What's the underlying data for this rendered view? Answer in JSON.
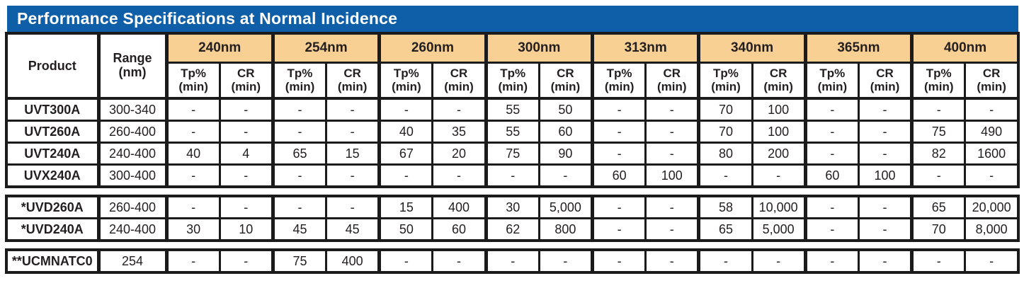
{
  "title": "Performance Specifications at Normal Incidence",
  "colors": {
    "title_bar_blue": "#0e5ea8",
    "title_text": "#ffffff",
    "wavelength_band_tan": "#f8d093",
    "grid_black": "#1b1b1b"
  },
  "table": {
    "product_header": "Product",
    "range_header": {
      "line1": "Range",
      "line2": "(nm)"
    },
    "sub_headers": {
      "tp": "Tp%",
      "cr": "CR",
      "min": "(min)"
    },
    "wavelengths": [
      "240nm",
      "254nm",
      "260nm",
      "300nm",
      "313nm",
      "340nm",
      "365nm",
      "400nm"
    ],
    "groups": [
      {
        "rows": [
          {
            "product": "UVT300A",
            "range": "300-340",
            "values": [
              "-",
              "-",
              "-",
              "-",
              "-",
              "-",
              "55",
              "50",
              "-",
              "-",
              "70",
              "100",
              "-",
              "-",
              "-",
              "-"
            ]
          },
          {
            "product": "UVT260A",
            "range": "260-400",
            "values": [
              "-",
              "-",
              "-",
              "-",
              "40",
              "35",
              "55",
              "60",
              "-",
              "-",
              "70",
              "100",
              "-",
              "-",
              "75",
              "490"
            ]
          },
          {
            "product": "UVT240A",
            "range": "240-400",
            "values": [
              "40",
              "4",
              "65",
              "15",
              "67",
              "20",
              "75",
              "90",
              "-",
              "-",
              "80",
              "200",
              "-",
              "-",
              "82",
              "1600"
            ]
          },
          {
            "product": "UVX240A",
            "range": "300-400",
            "values": [
              "-",
              "-",
              "-",
              "-",
              "-",
              "-",
              "-",
              "-",
              "60",
              "100",
              "-",
              "-",
              "60",
              "100",
              "-",
              "-"
            ]
          }
        ]
      },
      {
        "rows": [
          {
            "product": "*UVD260A",
            "range": "260-400",
            "values": [
              "-",
              "-",
              "-",
              "-",
              "15",
              "400",
              "30",
              "5,000",
              "-",
              "-",
              "58",
              "10,000",
              "-",
              "-",
              "65",
              "20,000"
            ]
          },
          {
            "product": "*UVD240A",
            "range": "240-400",
            "values": [
              "30",
              "10",
              "45",
              "45",
              "50",
              "60",
              "62",
              "800",
              "-",
              "-",
              "65",
              "5,000",
              "-",
              "-",
              "70",
              "8,000"
            ]
          }
        ]
      },
      {
        "rows": [
          {
            "product": "**UCMNATC0",
            "range": "254",
            "values": [
              "-",
              "-",
              "75",
              "400",
              "-",
              "-",
              "-",
              "-",
              "-",
              "-",
              "-",
              "-",
              "-",
              "-",
              "-",
              "-"
            ]
          }
        ]
      }
    ]
  }
}
